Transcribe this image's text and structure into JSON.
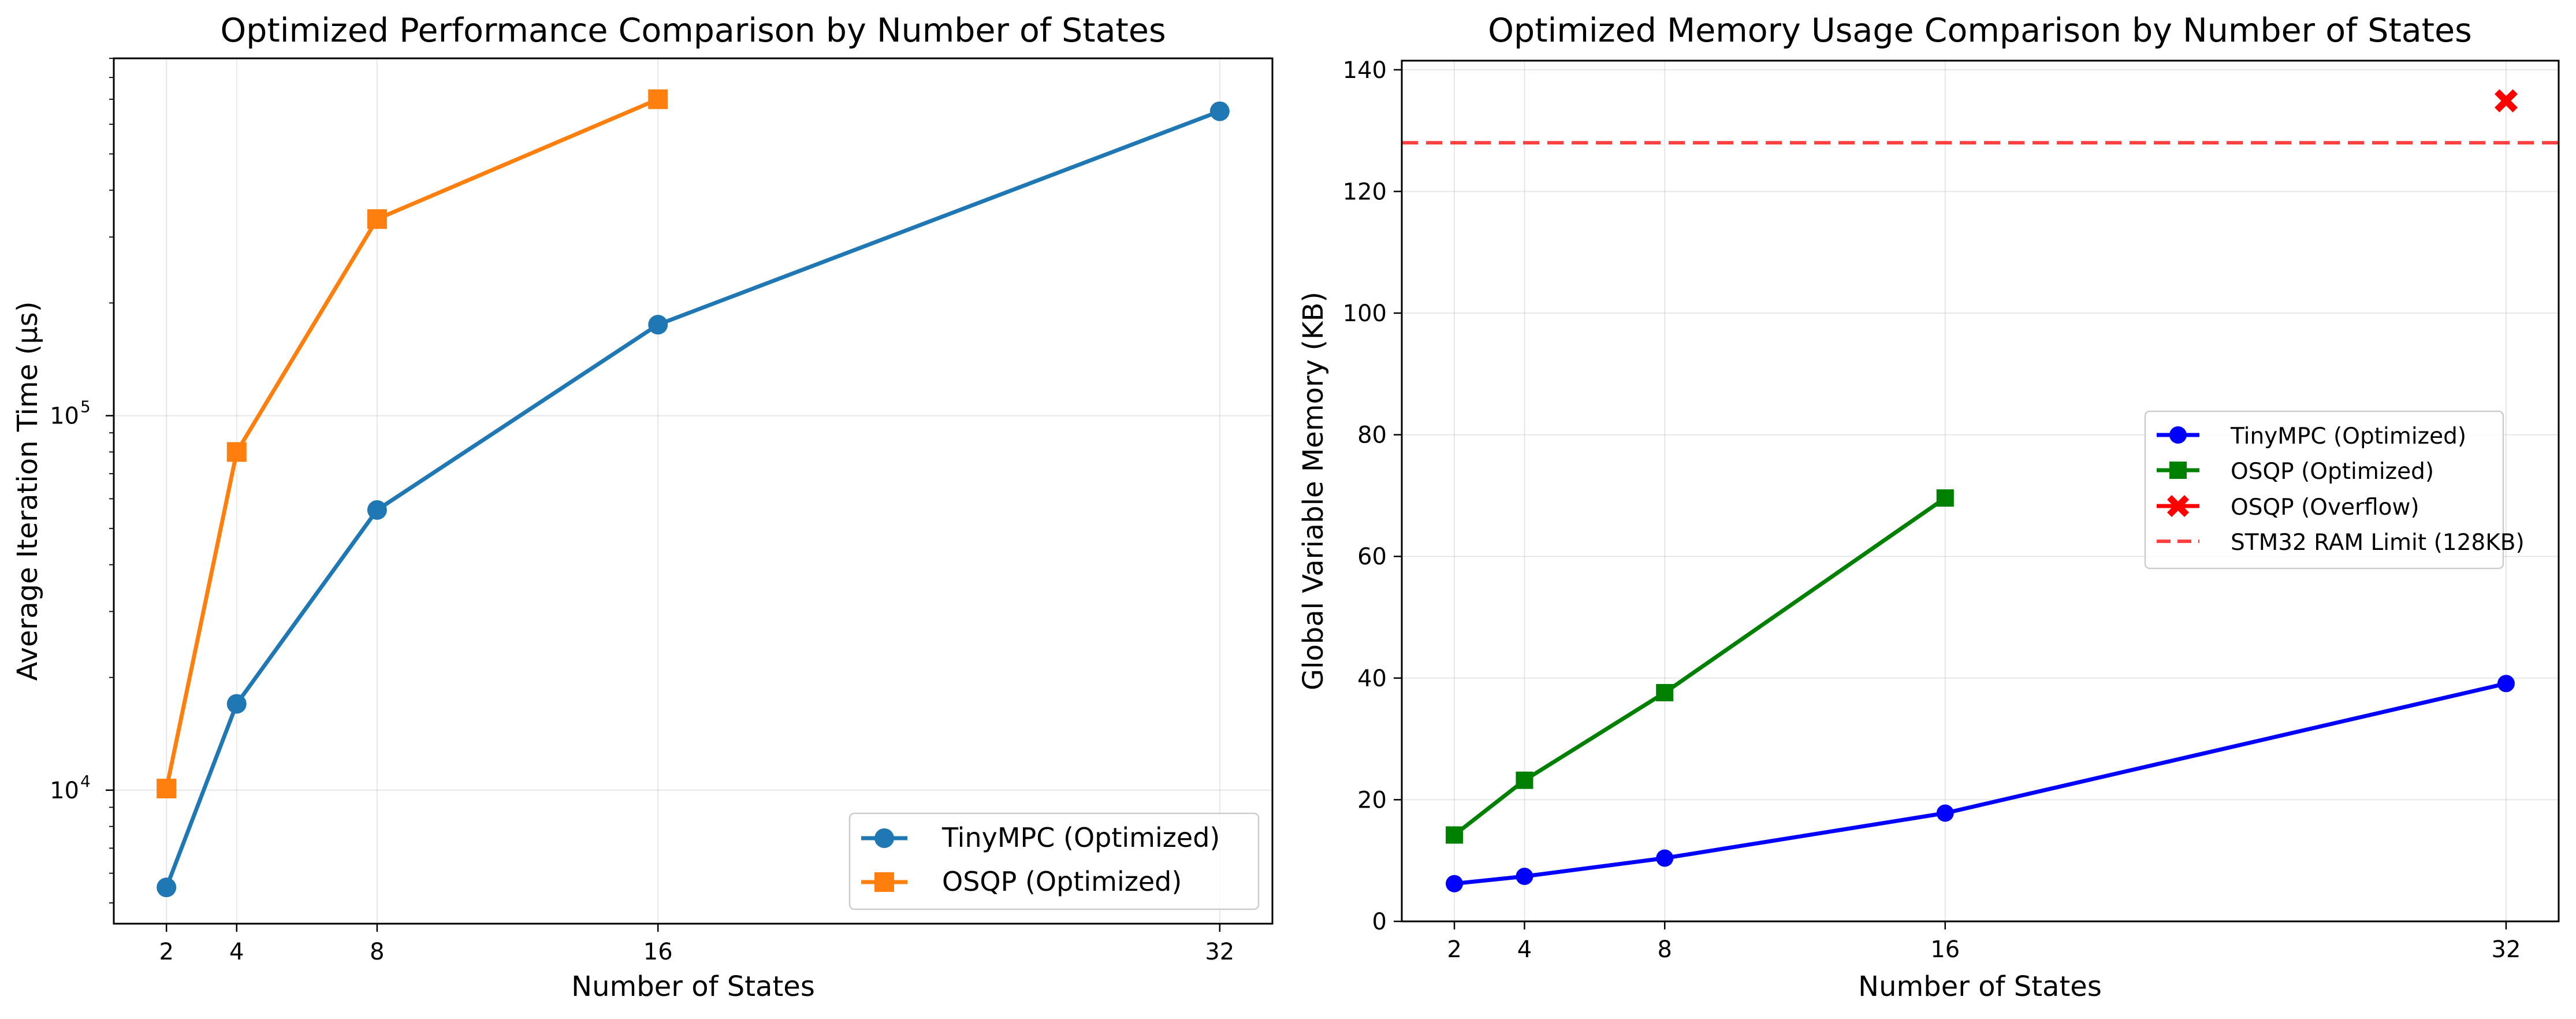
{
  "chart_data": [
    {
      "type": "line",
      "title": "Optimized Performance Comparison by Number of States",
      "xlabel": "Number of States",
      "ylabel": "Average Iteration Time (μs)",
      "yscale": "log",
      "xlim": [
        0.5,
        33.5
      ],
      "ylim": [
        4400,
        900000
      ],
      "x_ticks": [
        2,
        4,
        8,
        16,
        32
      ],
      "y_ticks": [
        {
          "value": 10000,
          "base": "10",
          "exp": "4"
        },
        {
          "value": 100000,
          "base": "10",
          "exp": "5"
        }
      ],
      "grid": true,
      "legend_position": "lower-right",
      "series": [
        {
          "name": "TinyMPC (Optimized)",
          "color": "#1f77b4",
          "marker": "circle",
          "x": [
            2,
            4,
            8,
            16,
            32
          ],
          "y": [
            5500,
            17000,
            56000,
            175000,
            650000
          ]
        },
        {
          "name": "OSQP (Optimized)",
          "color": "#ff7f0e",
          "marker": "square",
          "x": [
            2,
            4,
            8,
            16
          ],
          "y": [
            10100,
            80000,
            335000,
            700000
          ]
        }
      ]
    },
    {
      "type": "line",
      "title": "Optimized Memory Usage Comparison by Number of States",
      "xlabel": "Number of States",
      "ylabel": "Global Variable Memory (KB)",
      "yscale": "linear",
      "xlim": [
        0.5,
        33.5
      ],
      "ylim": [
        0,
        141.5
      ],
      "x_ticks": [
        2,
        4,
        8,
        16,
        32
      ],
      "y_ticks": [
        0,
        20,
        40,
        60,
        80,
        100,
        120,
        140
      ],
      "grid": true,
      "legend_position": "center-right",
      "series": [
        {
          "name": "TinyMPC (Optimized)",
          "color": "#0000ff",
          "marker": "circle",
          "x": [
            2,
            4,
            8,
            16,
            32
          ],
          "y": [
            6.2,
            7.4,
            10.4,
            17.8,
            39.1
          ]
        },
        {
          "name": "OSQP (Optimized)",
          "color": "#008000",
          "marker": "square",
          "x": [
            2,
            4,
            8,
            16
          ],
          "y": [
            14.2,
            23.2,
            37.6,
            69.6
          ]
        },
        {
          "name": "OSQP (Overflow)",
          "color": "#ff0000",
          "marker": "x",
          "x": [
            32
          ],
          "y": [
            134.9
          ]
        }
      ],
      "reference_lines": [
        {
          "name": "STM32 RAM Limit (128KB)",
          "orientation": "horizontal",
          "y": 128,
          "color": "#ff0000",
          "style": "dashed"
        }
      ]
    }
  ]
}
